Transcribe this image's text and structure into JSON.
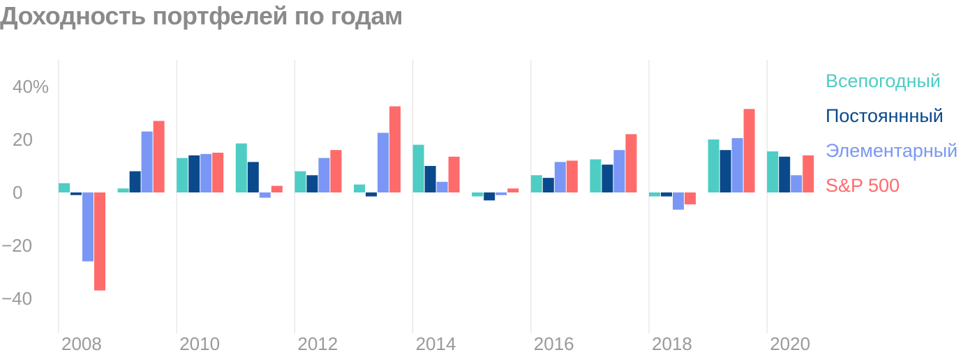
{
  "chart_data": {
    "type": "bar",
    "title": "Доходность портфелей по годам",
    "xlabel": "",
    "ylabel": "",
    "ylim": [
      -50,
      45
    ],
    "y_ticks": [
      40,
      20,
      0,
      -20,
      -40
    ],
    "y_tick_labels": [
      "40%",
      "20",
      "0",
      "−20",
      "−40"
    ],
    "x_tick_labels": [
      "2008",
      "2010",
      "2012",
      "2014",
      "2016",
      "2018",
      "2020"
    ],
    "categories": [
      "2008",
      "2009",
      "2010",
      "2011",
      "2012",
      "2013",
      "2014",
      "2015",
      "2016",
      "2017",
      "2018",
      "2019",
      "2020"
    ],
    "series": [
      {
        "name": "Всепогодный",
        "color": "#4ecdc4",
        "values": [
          3.5,
          1.5,
          13,
          18.5,
          8,
          3,
          18,
          -1.5,
          6.5,
          12.5,
          -1.5,
          20,
          15.5
        ]
      },
      {
        "name": "Постояннный",
        "color": "#0a4a8c",
        "values": [
          -1,
          8,
          14,
          11.5,
          6.5,
          -1.5,
          10,
          -3,
          5.5,
          10.5,
          -1.5,
          16,
          13.5
        ]
      },
      {
        "name": "Элементарный",
        "color": "#7b97f5",
        "values": [
          -26,
          23,
          14.5,
          -2,
          13,
          22.5,
          4,
          -1,
          11.5,
          16,
          -6.5,
          20.5,
          6.5
        ]
      },
      {
        "name": "S&P 500",
        "color": "#ff6b6b",
        "values": [
          -37,
          27,
          15,
          2.5,
          16,
          32.5,
          13.5,
          1.5,
          12,
          22,
          -4.5,
          31.5,
          14
        ]
      }
    ],
    "grid": false,
    "legend_position": "right"
  }
}
